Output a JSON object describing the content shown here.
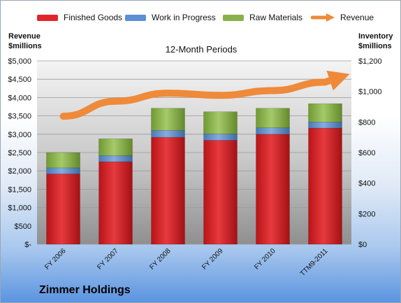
{
  "chart_data": {
    "type": "bar",
    "stacked": true,
    "title": "12-Month Periods",
    "categories": [
      "FY 2006",
      "FY 2007",
      "FY 2008",
      "FY 2009",
      "FY 2010",
      "TTM9-2011"
    ],
    "series": [
      {
        "name": "Finished Goods",
        "axis": "right",
        "color": "#e0262a",
        "values": [
          460,
          540,
          700,
          680,
          720,
          760
        ]
      },
      {
        "name": "Work in Progress",
        "axis": "right",
        "color": "#5b8fd6",
        "values": [
          40,
          40,
          45,
          42,
          42,
          40
        ]
      },
      {
        "name": "Raw Materials",
        "axis": "right",
        "color": "#88b04b",
        "values": [
          100,
          110,
          145,
          145,
          128,
          120
        ]
      },
      {
        "name": "Revenue",
        "axis": "left",
        "type": "line",
        "color": "#ee8a3a",
        "values": [
          3490,
          3900,
          4120,
          4060,
          4190,
          4420
        ]
      }
    ],
    "ylabel": "Revenue\n$millions",
    "y2label": "Inventory\n$millions",
    "ylim": [
      0,
      5000
    ],
    "y2lim": [
      0,
      1200
    ],
    "yticks": [
      "$-",
      "$500",
      "$1,000",
      "$1,500",
      "$2,000",
      "$2,500",
      "$3,000",
      "$3,500",
      "$4,000",
      "$4,500",
      "$5,000"
    ],
    "y2ticks": [
      "$0",
      "$200",
      "$400",
      "$600",
      "$800",
      "$1,000",
      "$1,200"
    ],
    "grid": true,
    "legend": "top"
  },
  "footer": {
    "company": "Zimmer Holdings"
  }
}
